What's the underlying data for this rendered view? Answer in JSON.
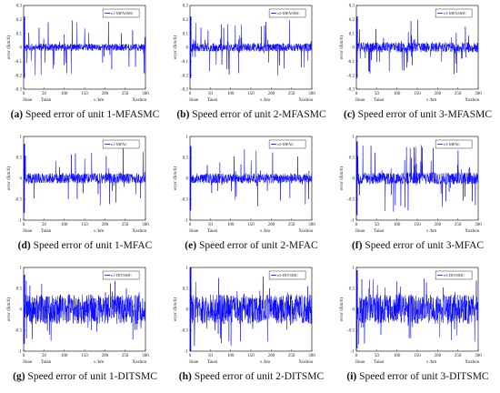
{
  "chart_data": [
    {
      "type": "line",
      "id": "a",
      "caption_tag": "(a)",
      "caption_text": "Speed error of unit 1-MFASMC",
      "legend": "e1-MFASMC",
      "series": [
        {
          "name": "e1-MFASMC",
          "color": "#0000ff"
        }
      ],
      "xlabel": "s /km",
      "ylabel": "error /(km/h)",
      "xlim": [
        0,
        300
      ],
      "ylim": [
        -0.3,
        0.3
      ],
      "xticks": [
        0,
        50,
        100,
        150,
        200,
        250,
        300
      ],
      "yticks": [
        -0.3,
        -0.2,
        -0.1,
        0,
        0.1,
        0.2,
        0.3
      ],
      "stations": [
        "Jinan",
        "Taian",
        "Xuzhou"
      ],
      "noise": {
        "base": 0.025,
        "spike": 0.2,
        "seed": 11
      }
    },
    {
      "type": "line",
      "id": "b",
      "caption_tag": "(b)",
      "caption_text": "Speed error of unit 2-MFASMC",
      "legend": "e2-MFASMC",
      "series": [
        {
          "name": "e2-MFASMC",
          "color": "#0000ff"
        }
      ],
      "xlabel": "s /km",
      "ylabel": "error /(km/h)",
      "xlim": [
        0,
        300
      ],
      "ylim": [
        -0.3,
        0.3
      ],
      "xticks": [
        0,
        50,
        100,
        150,
        200,
        250,
        300
      ],
      "yticks": [
        -0.3,
        -0.2,
        -0.1,
        0,
        0.1,
        0.2,
        0.3
      ],
      "stations": [
        "Jinan",
        "Taian",
        "Xuzhou"
      ],
      "noise": {
        "base": 0.03,
        "spike": 0.2,
        "seed": 23
      }
    },
    {
      "type": "line",
      "id": "c",
      "caption_tag": "(c)",
      "caption_text": "Speed error of unit 3-MFASMC",
      "legend": "e3-MFASMC",
      "series": [
        {
          "name": "e3-MFASMC",
          "color": "#0000ff"
        }
      ],
      "xlabel": "s /km",
      "ylabel": "error /(km/h)",
      "xlim": [
        0,
        300
      ],
      "ylim": [
        -0.3,
        0.3
      ],
      "xticks": [
        0,
        50,
        100,
        150,
        200,
        250,
        300
      ],
      "yticks": [
        -0.3,
        -0.2,
        -0.1,
        0,
        0.1,
        0.2,
        0.3
      ],
      "stations": [
        "Jinan",
        "Taian",
        "Xuzhou"
      ],
      "noise": {
        "base": 0.035,
        "spike": 0.2,
        "seed": 37
      }
    },
    {
      "type": "line",
      "id": "d",
      "caption_tag": "(d)",
      "caption_text": "Speed error of unit 1-MFAC",
      "legend": "e1-MFAC",
      "series": [
        {
          "name": "e1-MFAC",
          "color": "#0000ff"
        }
      ],
      "xlabel": "s /km",
      "ylabel": "error /(km/h)",
      "xlim": [
        0,
        300
      ],
      "ylim": [
        -1,
        1
      ],
      "xticks": [
        0,
        50,
        100,
        150,
        200,
        250,
        300
      ],
      "yticks": [
        -1,
        -0.5,
        0,
        0.5,
        1
      ],
      "stations": [
        "Jinan",
        "Taian",
        "Xuzhou"
      ],
      "noise": {
        "base": 0.12,
        "spike": 0.75,
        "seed": 41
      }
    },
    {
      "type": "line",
      "id": "e",
      "caption_tag": "(e)",
      "caption_text": "Speed error of unit 2-MFAC",
      "legend": "e2-MFAC",
      "series": [
        {
          "name": "e2-MFAC",
          "color": "#0000ff"
        }
      ],
      "xlabel": "s /km",
      "ylabel": "error /(km/h)",
      "xlim": [
        0,
        300
      ],
      "ylim": [
        -1,
        1
      ],
      "xticks": [
        0,
        50,
        100,
        150,
        200,
        250,
        300
      ],
      "yticks": [
        -1,
        -0.5,
        0,
        0.5,
        1
      ],
      "stations": [
        "Jinan",
        "Taian",
        "Xuzhou"
      ],
      "noise": {
        "base": 0.12,
        "spike": 0.7,
        "seed": 53
      }
    },
    {
      "type": "line",
      "id": "f",
      "caption_tag": "(f)",
      "caption_text": "Speed error of unit 3-MFAC",
      "legend": "e3-MFAC",
      "series": [
        {
          "name": "e3-MFAC",
          "color": "#0000ff"
        }
      ],
      "xlabel": "s /km",
      "ylabel": "error /(km/h)",
      "xlim": [
        0,
        300
      ],
      "ylim": [
        -1,
        1
      ],
      "xticks": [
        0,
        50,
        100,
        150,
        200,
        250,
        300
      ],
      "yticks": [
        -1,
        -0.5,
        0,
        0.5,
        1
      ],
      "stations": [
        "Jinan",
        "Taian",
        "Xuzhou"
      ],
      "noise": {
        "base": 0.14,
        "spike": 0.8,
        "seed": 67
      }
    },
    {
      "type": "line",
      "id": "g",
      "caption_tag": "(g)",
      "caption_text": "Speed error of unit 1-DITSMC",
      "legend": "e1-DITSMC",
      "series": [
        {
          "name": "e1-DITSMC",
          "color": "#0000ff"
        }
      ],
      "xlabel": "s /km",
      "ylabel": "error /(km/h)",
      "xlim": [
        0,
        300
      ],
      "ylim": [
        -1,
        1
      ],
      "xticks": [
        0,
        50,
        100,
        150,
        200,
        250,
        300
      ],
      "yticks": [
        -1,
        -0.5,
        0,
        0.5,
        1
      ],
      "stations": [
        "Jinan",
        "Taian",
        "Xuzhou"
      ],
      "noise": {
        "base": 0.35,
        "spike": 0.75,
        "seed": 71
      }
    },
    {
      "type": "line",
      "id": "h",
      "caption_tag": "(h)",
      "caption_text": "Speed error of unit 2-DITSMC",
      "legend": "e2-DITSMC",
      "series": [
        {
          "name": "e2-DITSMC",
          "color": "#0000ff"
        }
      ],
      "xlabel": "s /km",
      "ylabel": "error /(km/h)",
      "xlim": [
        0,
        300
      ],
      "ylim": [
        -1,
        1
      ],
      "xticks": [
        0,
        50,
        100,
        150,
        200,
        250,
        300
      ],
      "yticks": [
        -1,
        -0.5,
        0,
        0.5,
        1
      ],
      "stations": [
        "Jinan",
        "Taian",
        "Xuzhou"
      ],
      "noise": {
        "base": 0.35,
        "spike": 0.9,
        "seed": 83
      }
    },
    {
      "type": "line",
      "id": "i",
      "caption_tag": "(i)",
      "caption_text": "Speed error of unit 3-DITSMC",
      "legend": "e3-DITSMC",
      "series": [
        {
          "name": "e3-DITSMC",
          "color": "#0000ff"
        }
      ],
      "xlabel": "s /km",
      "ylabel": "error /(km/h)",
      "xlim": [
        0,
        300
      ],
      "ylim": [
        -1,
        1
      ],
      "xticks": [
        0,
        50,
        100,
        150,
        200,
        250,
        300
      ],
      "yticks": [
        -1,
        -0.5,
        0,
        0.5,
        1
      ],
      "stations": [
        "Jinan",
        "Taian",
        "Xuzhou"
      ],
      "noise": {
        "base": 0.35,
        "spike": 0.85,
        "seed": 97
      }
    }
  ]
}
